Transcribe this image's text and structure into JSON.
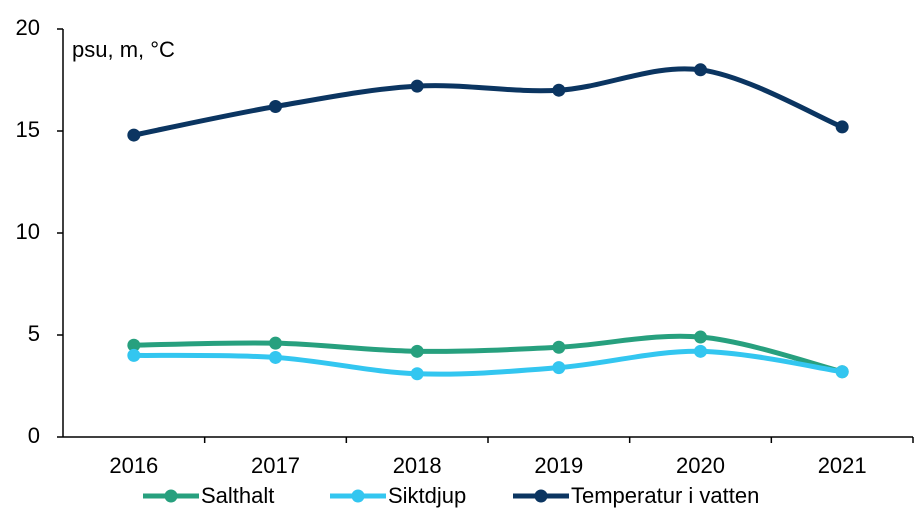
{
  "chart_data": {
    "type": "line",
    "annotation": "psu, m, °C",
    "categories": [
      "2016",
      "2017",
      "2018",
      "2019",
      "2020",
      "2021"
    ],
    "series": [
      {
        "name": "Salthalt",
        "color": "#27a07e",
        "values": [
          4.5,
          4.6,
          4.2,
          4.4,
          4.9,
          3.2
        ]
      },
      {
        "name": "Siktdjup",
        "color": "#33c6f0",
        "values": [
          4.0,
          3.9,
          3.1,
          3.4,
          4.2,
          3.2
        ]
      },
      {
        "name": "Temperatur i vatten",
        "color": "#0b3561",
        "values": [
          14.8,
          16.2,
          17.2,
          17.0,
          18.0,
          15.2
        ]
      }
    ],
    "ylim": [
      0,
      20
    ],
    "yticks": [
      0,
      5,
      10,
      15,
      20
    ],
    "grid": false,
    "smooth": true,
    "legend": "bottom"
  }
}
